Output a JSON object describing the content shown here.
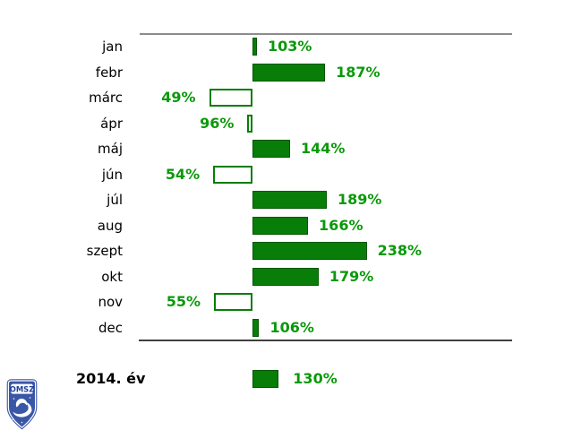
{
  "chart_data": {
    "type": "bar",
    "orientation": "horizontal",
    "unit": "%",
    "baseline": 100,
    "categories": [
      "jan",
      "febr",
      "márc",
      "ápr",
      "máj",
      "jún",
      "júl",
      "aug",
      "szept",
      "okt",
      "nov",
      "dec"
    ],
    "values": [
      103,
      187,
      49,
      96,
      144,
      54,
      189,
      166,
      238,
      179,
      55,
      106
    ],
    "value_labels": [
      "103%",
      "187%",
      "49%",
      "96%",
      "144%",
      "54%",
      "189%",
      "166%",
      "238%",
      "179%",
      "55%",
      "106%"
    ],
    "summary": {
      "label": "2014. év",
      "value": 130,
      "value_label": "130%"
    },
    "layout_hints": {
      "above_baseline_style": "filled",
      "below_baseline_style": "hollow",
      "grid": "off",
      "frame": "top and bottom rules only"
    },
    "colors": {
      "bar_fill": "#087d08",
      "bar_border": "#005700",
      "value_text": "#0a990a",
      "category_text": "#000000",
      "rule_top": "#8c8c8c",
      "rule_bottom": "#404040"
    }
  },
  "logo": {
    "text": "OMSZ",
    "shield_blue": "#3a57a7",
    "text_blue": "#1e3f9e"
  }
}
